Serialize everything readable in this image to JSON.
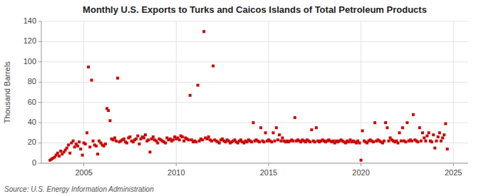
{
  "chart_data": {
    "type": "scatter",
    "title": "Monthly U.S. Exports to Turks and Caicos Islands of Total Petroleum Products",
    "ylabel": "Thousand Barrels",
    "annotations": [
      "Source: U.S. Energy Information Administration"
    ],
    "color": "#cc0000",
    "marker": "square",
    "grid": true,
    "xlim": [
      2002.7,
      2025.8
    ],
    "ylim": [
      0,
      140
    ],
    "xticks": [
      2005,
      2010,
      2015,
      2020,
      2025
    ],
    "yticks": [
      0,
      20,
      40,
      60,
      80,
      100,
      120,
      140
    ],
    "x": [
      2003.17,
      2003.25,
      2003.33,
      2003.42,
      2003.5,
      2003.58,
      2003.67,
      2003.75,
      2003.83,
      2003.92,
      2004.0,
      2004.08,
      2004.17,
      2004.25,
      2004.33,
      2004.42,
      2004.5,
      2004.58,
      2004.67,
      2004.75,
      2004.83,
      2004.92,
      2005.0,
      2005.08,
      2005.17,
      2005.25,
      2005.33,
      2005.42,
      2005.5,
      2005.58,
      2005.67,
      2005.75,
      2005.83,
      2005.92,
      2006.0,
      2006.08,
      2006.17,
      2006.25,
      2006.33,
      2006.42,
      2006.5,
      2006.58,
      2006.67,
      2006.75,
      2006.83,
      2006.92,
      2007.0,
      2007.08,
      2007.17,
      2007.25,
      2007.33,
      2007.42,
      2007.5,
      2007.58,
      2007.67,
      2007.75,
      2007.83,
      2007.92,
      2008.0,
      2008.08,
      2008.17,
      2008.25,
      2008.33,
      2008.42,
      2008.5,
      2008.58,
      2008.67,
      2008.75,
      2008.83,
      2008.92,
      2009.0,
      2009.08,
      2009.17,
      2009.25,
      2009.33,
      2009.42,
      2009.5,
      2009.58,
      2009.67,
      2009.75,
      2009.83,
      2009.92,
      2010.0,
      2010.08,
      2010.17,
      2010.25,
      2010.33,
      2010.42,
      2010.5,
      2010.58,
      2010.67,
      2010.75,
      2010.83,
      2010.92,
      2011.0,
      2011.08,
      2011.17,
      2011.25,
      2011.33,
      2011.42,
      2011.5,
      2011.58,
      2011.67,
      2011.75,
      2011.83,
      2011.92,
      2012.0,
      2012.08,
      2012.17,
      2012.25,
      2012.33,
      2012.42,
      2012.5,
      2012.58,
      2012.67,
      2012.75,
      2012.83,
      2012.92,
      2013.0,
      2013.08,
      2013.17,
      2013.25,
      2013.33,
      2013.42,
      2013.5,
      2013.58,
      2013.67,
      2013.75,
      2013.83,
      2013.92,
      2014.0,
      2014.08,
      2014.17,
      2014.25,
      2014.33,
      2014.42,
      2014.5,
      2014.58,
      2014.67,
      2014.75,
      2014.83,
      2014.92,
      2015.0,
      2015.08,
      2015.17,
      2015.25,
      2015.33,
      2015.42,
      2015.5,
      2015.58,
      2015.67,
      2015.75,
      2015.83,
      2015.92,
      2016.0,
      2016.08,
      2016.17,
      2016.25,
      2016.33,
      2016.42,
      2016.5,
      2016.58,
      2016.67,
      2016.75,
      2016.83,
      2016.92,
      2017.0,
      2017.08,
      2017.17,
      2017.25,
      2017.33,
      2017.42,
      2017.5,
      2017.58,
      2017.67,
      2017.75,
      2017.83,
      2017.92,
      2018.0,
      2018.08,
      2018.17,
      2018.25,
      2018.33,
      2018.42,
      2018.5,
      2018.58,
      2018.67,
      2018.75,
      2018.83,
      2018.92,
      2019.0,
      2019.08,
      2019.17,
      2019.25,
      2019.33,
      2019.42,
      2019.5,
      2019.58,
      2019.67,
      2019.75,
      2019.83,
      2019.92,
      2020.0,
      2020.08,
      2020.17,
      2020.25,
      2020.33,
      2020.42,
      2020.5,
      2020.58,
      2020.67,
      2020.75,
      2020.83,
      2020.92,
      2021.0,
      2021.08,
      2021.17,
      2021.25,
      2021.33,
      2021.42,
      2021.5,
      2021.58,
      2021.67,
      2021.75,
      2021.83,
      2021.92,
      2022.0,
      2022.08,
      2022.17,
      2022.25,
      2022.33,
      2022.42,
      2022.5,
      2022.58,
      2022.67,
      2022.75,
      2022.83,
      2022.92,
      2023.0,
      2023.08,
      2023.17,
      2023.25,
      2023.33,
      2023.42,
      2023.5,
      2023.58,
      2023.67,
      2023.75,
      2023.83,
      2023.92,
      2024.0,
      2024.08,
      2024.17,
      2024.25,
      2024.33,
      2024.42,
      2024.5,
      2024.58,
      2024.67
    ],
    "values": [
      3,
      4,
      5,
      6,
      8,
      10,
      7,
      12,
      9,
      11,
      13,
      15,
      18,
      10,
      20,
      22,
      16,
      19,
      17,
      21,
      14,
      8,
      20,
      19,
      30,
      95,
      16,
      82,
      22,
      18,
      17,
      9,
      22,
      20,
      18,
      17,
      19,
      54,
      52,
      42,
      24,
      23,
      25,
      22,
      84,
      21,
      22,
      23,
      24,
      21,
      20,
      25,
      26,
      22,
      21,
      23,
      24,
      27,
      19,
      24,
      26,
      25,
      28,
      22,
      23,
      11,
      24,
      26,
      23,
      22,
      20,
      24,
      23,
      22,
      21,
      20,
      25,
      23,
      24,
      22,
      23,
      26,
      24,
      25,
      23,
      27,
      26,
      22,
      25,
      24,
      23,
      67,
      23,
      21,
      22,
      21,
      77,
      22,
      24,
      23,
      130,
      25,
      24,
      26,
      23,
      22,
      96,
      23,
      22,
      21,
      20,
      23,
      24,
      22,
      21,
      23,
      22,
      20,
      21,
      22,
      23,
      21,
      20,
      22,
      23,
      21,
      20,
      22,
      21,
      23,
      22,
      21,
      40,
      22,
      23,
      22,
      21,
      35,
      22,
      21,
      30,
      22,
      23,
      22,
      21,
      30,
      22,
      35,
      23,
      28,
      22,
      25,
      22,
      21,
      22,
      21,
      22,
      23,
      22,
      45,
      22,
      23,
      22,
      21,
      23,
      22,
      21,
      23,
      22,
      21,
      33,
      22,
      21,
      35,
      22,
      21,
      22,
      23,
      22,
      21,
      22,
      23,
      22,
      21,
      22,
      20,
      22,
      21,
      22,
      23,
      22,
      21,
      20,
      22,
      21,
      23,
      21,
      22,
      21,
      20,
      22,
      20,
      3,
      32,
      22,
      21,
      20,
      22,
      23,
      22,
      21,
      40,
      22,
      23,
      22,
      21,
      20,
      22,
      40,
      35,
      22,
      25,
      23,
      22,
      21,
      22,
      20,
      30,
      22,
      35,
      22,
      21,
      40,
      22,
      23,
      22,
      48,
      23,
      22,
      21,
      35,
      22,
      30,
      25,
      22,
      27,
      30,
      22,
      21,
      28,
      15,
      22,
      26,
      30,
      22,
      25,
      28,
      39,
      14
    ]
  }
}
